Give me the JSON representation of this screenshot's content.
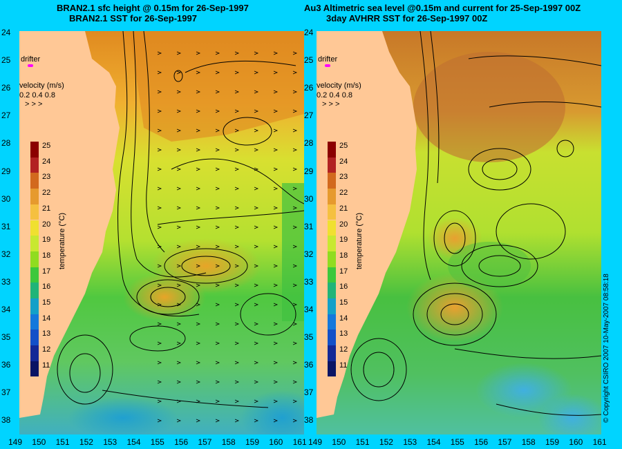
{
  "left": {
    "title_line1": "BRAN2.1 sfc height @ 0.15m for 26-Sep-1997",
    "title_line2": "BRAN2.1 SST for 26-Sep-1997"
  },
  "right": {
    "title_line1": "Au3 Altimetric sea level  @0.15m and current for 25-Sep-1997 00Z",
    "title_line2": "3day AVHRR SST for 26-Sep-1997 00Z"
  },
  "latitudes": [
    "24",
    "25",
    "26",
    "27",
    "28",
    "29",
    "30",
    "31",
    "32",
    "33",
    "34",
    "35",
    "36",
    "37",
    "38"
  ],
  "longitudes": [
    "149",
    "150",
    "151",
    "152",
    "153",
    "154",
    "155",
    "156",
    "157",
    "158",
    "159",
    "160",
    "161"
  ],
  "drifter_label": "drifter",
  "velocity": {
    "label": "velocity (m/s)",
    "scale": "0.2 0.4 0.8",
    "arrows": "˃ ˃ ˃"
  },
  "colorbar": {
    "ticks": [
      "25",
      "24",
      "23",
      "22",
      "21",
      "20",
      "19",
      "18",
      "17",
      "16",
      "15",
      "14",
      "13",
      "12",
      "11"
    ],
    "label": "temperature (°C)",
    "colors": [
      "#8b0000",
      "#b22222",
      "#d2691e",
      "#e69a2e",
      "#f5c040",
      "#f0e030",
      "#c8e830",
      "#90dc20",
      "#3cc83c",
      "#20b478",
      "#14a0c8",
      "#1478dc",
      "#1450c8",
      "#142896",
      "#0a1464"
    ]
  },
  "copyright": "© Copyright CSIRO 2007   10-May-2007 08:58:18",
  "colors": {
    "background": "#00d4ff",
    "land": "#ffc896",
    "contour": "#000000"
  }
}
